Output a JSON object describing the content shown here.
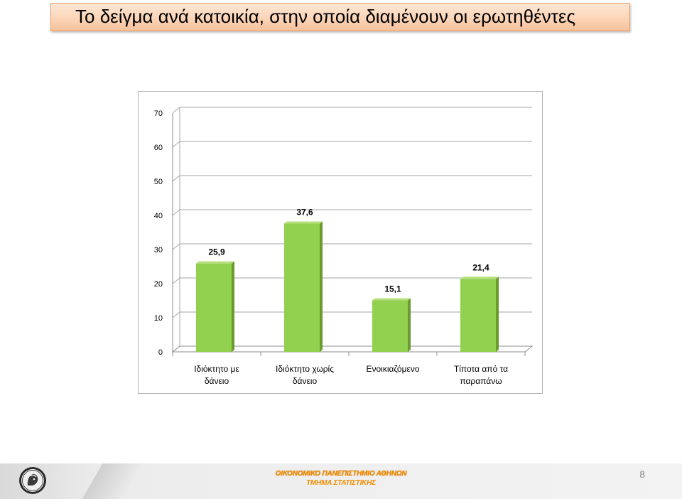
{
  "slide": {
    "title": "Το δείγμα ανά κατοικία, στην οποία διαμένουν οι ερωτηθέντες",
    "page_number": "8"
  },
  "footer": {
    "university": "ΟΙΚΟΝΟΜΙΚΟ ΠΑΝΕΠΙΣΤΗΜΙΟ ΑΘΗΝΩΝ",
    "department": "ΤΜΗΜΑ ΣΤΑΤΙΣΤΙΚΗΣ",
    "logo_icon": "university-seal-icon"
  },
  "colors": {
    "bar_fill": "#92d050",
    "bar_side": "#6a9a30",
    "bar_top": "#b6e07d",
    "title_border": "#e8a06a",
    "footer_text": "#f28c00"
  },
  "chart_data": {
    "type": "bar",
    "categories": [
      [
        "Ιδιόκτητο με",
        "δάνειο"
      ],
      [
        "Ιδιόκτητο χωρίς",
        "δάνειο"
      ],
      [
        "Ενοικιαζόμενο"
      ],
      [
        "Τίποτα από τα",
        "παραπάνω"
      ]
    ],
    "values": [
      25.9,
      37.6,
      15.1,
      21.4
    ],
    "data_labels": [
      "25,9",
      "37,6",
      "15,1",
      "21,4"
    ],
    "ylim": [
      0,
      70
    ],
    "y_ticks": [
      "0",
      "10",
      "20",
      "30",
      "40",
      "50",
      "60",
      "70"
    ],
    "grid": true,
    "legend": "none",
    "style": "3d-column"
  }
}
